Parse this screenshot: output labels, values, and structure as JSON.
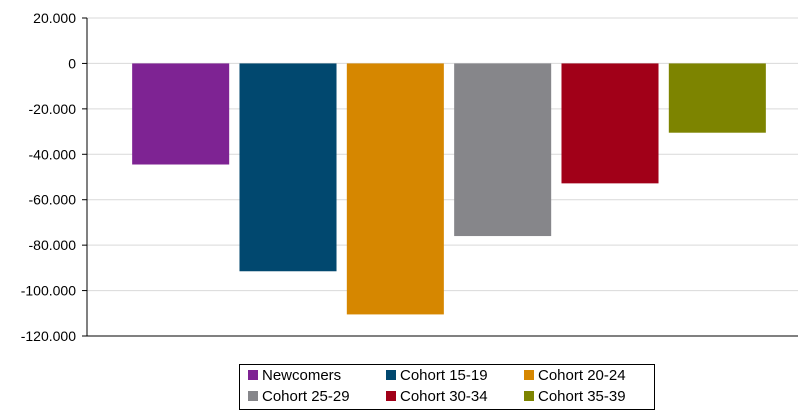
{
  "chart_data": {
    "type": "bar",
    "title": "",
    "xlabel": "",
    "ylabel": "",
    "ylim": [
      -120000,
      20000
    ],
    "y_ticks": [
      {
        "value": 20000,
        "label": "20.000"
      },
      {
        "value": 0,
        "label": "0"
      },
      {
        "value": -20000,
        "label": "-20.000"
      },
      {
        "value": -40000,
        "label": "-40.000"
      },
      {
        "value": -60000,
        "label": "-60.000"
      },
      {
        "value": -80000,
        "label": "-80.000"
      },
      {
        "value": -100000,
        "label": "-100.000"
      },
      {
        "value": -120000,
        "label": "-120.000"
      }
    ],
    "grid": true,
    "legend_position": "bottom",
    "series": [
      {
        "name": "Newcomers",
        "value": -44500,
        "color": "#7e2393"
      },
      {
        "name": "Cohort 15-19",
        "value": -91500,
        "color": "#01486f"
      },
      {
        "name": "Cohort 20-24",
        "value": -110500,
        "color": "#d68700"
      },
      {
        "name": "Cohort 25-29",
        "value": -76000,
        "color": "#86868a"
      },
      {
        "name": "Cohort 30-34",
        "value": -52800,
        "color": "#a10018"
      },
      {
        "name": "Cohort 35-39",
        "value": -30500,
        "color": "#7d8400"
      }
    ]
  }
}
